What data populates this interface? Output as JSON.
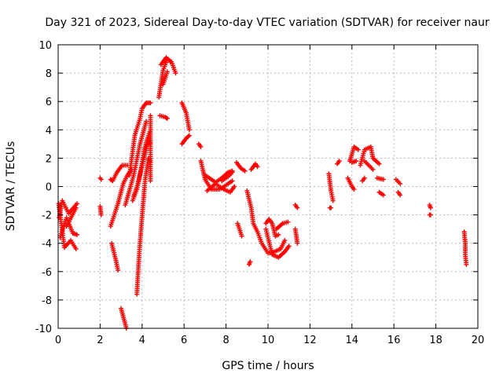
{
  "chart_data": {
    "type": "scatter",
    "title": "Day 321 of 2023, Sidereal Day-to-day VTEC variation (SDTVAR) for receiver naur",
    "xlabel": "GPS time / hours",
    "ylabel": "SDTVAR / TECUs",
    "xlim": [
      0,
      20
    ],
    "ylim": [
      -10,
      10
    ],
    "xticks": [
      0,
      2,
      4,
      6,
      8,
      10,
      12,
      14,
      16,
      18,
      20
    ],
    "yticks": [
      -10,
      -8,
      -6,
      -4,
      -2,
      0,
      2,
      4,
      6,
      8,
      10
    ],
    "grid": true,
    "marker": "+",
    "color": "#ff0000",
    "series": [
      {
        "name": "SDTVAR",
        "segments": [
          [
            [
              0.02,
              -1.2
            ],
            [
              0.3,
              -4.3
            ],
            [
              0.6,
              -3.8
            ],
            [
              0.85,
              -4.4
            ]
          ],
          [
            [
              0.05,
              -2.2
            ],
            [
              0.2,
              -1.0
            ],
            [
              0.5,
              -1.9
            ],
            [
              0.9,
              -1.2
            ]
          ],
          [
            [
              0.1,
              -3.6
            ],
            [
              0.4,
              -2.2
            ],
            [
              0.7,
              -3.3
            ],
            [
              0.9,
              -3.4
            ]
          ],
          [
            [
              0.4,
              -2.8
            ],
            [
              0.85,
              -1.5
            ]
          ],
          [
            [
              2.0,
              0.6
            ],
            [
              2.05,
              0.5
            ]
          ],
          [
            [
              2.0,
              -1.4
            ],
            [
              2.05,
              -2.0
            ]
          ],
          [
            [
              2.5,
              -2.8
            ],
            [
              2.85,
              -1.2
            ],
            [
              3.1,
              0.2
            ],
            [
              3.3,
              0.8
            ],
            [
              3.5,
              1.2
            ]
          ],
          [
            [
              2.5,
              0.5
            ],
            [
              2.6,
              0.4
            ],
            [
              2.8,
              1.0
            ],
            [
              3.05,
              1.5
            ],
            [
              3.3,
              1.5
            ]
          ],
          [
            [
              2.55,
              -4.0
            ],
            [
              2.75,
              -5.2
            ],
            [
              2.85,
              -5.9
            ]
          ],
          [
            [
              3.0,
              -8.6
            ],
            [
              3.25,
              -10.0
            ]
          ],
          [
            [
              3.2,
              -1.3
            ],
            [
              3.6,
              0.8
            ],
            [
              3.9,
              3.0
            ],
            [
              4.2,
              4.6
            ]
          ],
          [
            [
              3.4,
              0.8
            ],
            [
              3.65,
              3.6
            ],
            [
              3.9,
              4.8
            ],
            [
              4.0,
              5.5
            ],
            [
              4.2,
              5.9
            ],
            [
              4.4,
              5.9
            ]
          ],
          [
            [
              3.55,
              -1.0
            ],
            [
              3.75,
              -0.2
            ],
            [
              3.95,
              1.2
            ],
            [
              4.1,
              2.6
            ],
            [
              4.3,
              3.6
            ],
            [
              4.4,
              4.0
            ]
          ],
          [
            [
              3.6,
              -0.7
            ],
            [
              3.8,
              0.2
            ],
            [
              4.0,
              1.5
            ],
            [
              4.3,
              3.2
            ],
            [
              4.4,
              3.0
            ]
          ],
          [
            [
              3.75,
              -7.6
            ],
            [
              3.85,
              -5.0
            ],
            [
              3.95,
              -3.0
            ],
            [
              4.05,
              -1.2
            ],
            [
              4.15,
              0.5
            ],
            [
              4.3,
              2.0
            ],
            [
              4.4,
              1.7
            ]
          ],
          [
            [
              4.4,
              0.4
            ],
            [
              4.4,
              5.0
            ]
          ],
          [
            [
              4.8,
              6.3
            ],
            [
              5.0,
              8.2
            ],
            [
              5.2,
              9.0
            ],
            [
              5.4,
              8.8
            ],
            [
              5.6,
              8.0
            ]
          ],
          [
            [
              4.9,
              8.6
            ],
            [
              5.15,
              9.1
            ],
            [
              5.35,
              8.8
            ]
          ],
          [
            [
              5.0,
              7.2
            ],
            [
              5.2,
              8.1
            ]
          ],
          [
            [
              4.85,
              5.0
            ],
            [
              5.1,
              4.9
            ],
            [
              5.2,
              4.8
            ]
          ],
          [
            [
              5.9,
              5.9
            ],
            [
              6.1,
              5.2
            ],
            [
              6.25,
              4.0
            ]
          ],
          [
            [
              5.9,
              3.0
            ],
            [
              6.1,
              3.4
            ],
            [
              6.25,
              3.6
            ]
          ],
          [
            [
              6.7,
              3.0
            ],
            [
              6.8,
              2.8
            ]
          ],
          [
            [
              6.8,
              1.8
            ],
            [
              7.0,
              0.5
            ],
            [
              7.3,
              -0.2
            ],
            [
              7.7,
              -0.2
            ],
            [
              8.1,
              0.2
            ],
            [
              8.3,
              0.4
            ]
          ],
          [
            [
              7.0,
              0.8
            ],
            [
              7.5,
              0.3
            ],
            [
              7.8,
              0.6
            ],
            [
              8.1,
              1.0
            ],
            [
              8.3,
              1.1
            ]
          ],
          [
            [
              7.1,
              -0.3
            ],
            [
              7.5,
              0.2
            ],
            [
              7.9,
              -0.2
            ],
            [
              8.2,
              -0.4
            ],
            [
              8.4,
              0.0
            ]
          ],
          [
            [
              7.8,
              0.4
            ],
            [
              8.1,
              0.7
            ],
            [
              8.3,
              1.0
            ]
          ],
          [
            [
              8.5,
              1.7
            ],
            [
              8.7,
              1.3
            ],
            [
              8.9,
              1.1
            ]
          ],
          [
            [
              8.55,
              -2.6
            ],
            [
              8.75,
              -3.5
            ]
          ],
          [
            [
              9.0,
              -0.3
            ],
            [
              9.2,
              -1.5
            ],
            [
              9.3,
              -2.6
            ],
            [
              9.5,
              -3.2
            ],
            [
              9.7,
              -4.0
            ],
            [
              10.0,
              -4.7
            ],
            [
              10.3,
              -4.6
            ],
            [
              10.6,
              -4.4
            ],
            [
              10.8,
              -3.8
            ]
          ],
          [
            [
              9.1,
              -5.5
            ],
            [
              9.15,
              -5.3
            ]
          ],
          [
            [
              9.2,
              1.2
            ],
            [
              9.4,
              1.6
            ],
            [
              9.5,
              1.4
            ]
          ],
          [
            [
              9.9,
              -3.0
            ],
            [
              10.2,
              -4.8
            ],
            [
              10.5,
              -5.0
            ],
            [
              10.8,
              -4.6
            ],
            [
              11.0,
              -4.2
            ]
          ],
          [
            [
              9.9,
              -2.6
            ],
            [
              10.05,
              -2.3
            ],
            [
              10.2,
              -2.6
            ],
            [
              10.35,
              -3.5
            ],
            [
              10.5,
              -3.4
            ]
          ],
          [
            [
              10.4,
              -3.0
            ],
            [
              10.7,
              -2.6
            ],
            [
              10.95,
              -2.5
            ]
          ],
          [
            [
              11.3,
              -1.3
            ],
            [
              11.4,
              -1.5
            ]
          ],
          [
            [
              11.3,
              -3.0
            ],
            [
              11.4,
              -4.0
            ]
          ],
          [
            [
              12.9,
              0.9
            ],
            [
              13.0,
              -0.3
            ],
            [
              13.1,
              -1.0
            ]
          ],
          [
            [
              12.95,
              -1.5
            ],
            [
              13.0,
              -1.5
            ]
          ],
          [
            [
              13.3,
              1.6
            ],
            [
              13.4,
              1.8
            ]
          ],
          [
            [
              13.8,
              0.6
            ],
            [
              14.0,
              0.0
            ],
            [
              14.1,
              -0.2
            ]
          ],
          [
            [
              13.9,
              1.8
            ],
            [
              14.1,
              2.8
            ],
            [
              14.3,
              2.6
            ]
          ],
          [
            [
              14.0,
              1.7
            ],
            [
              14.2,
              1.8
            ]
          ],
          [
            [
              14.4,
              1.5
            ],
            [
              14.6,
              2.6
            ],
            [
              14.9,
              2.8
            ],
            [
              15.0,
              2.0
            ],
            [
              15.3,
              1.6
            ]
          ],
          [
            [
              14.5,
              0.4
            ],
            [
              14.6,
              0.6
            ]
          ],
          [
            [
              14.6,
              1.8
            ],
            [
              14.8,
              1.5
            ],
            [
              15.0,
              1.2
            ]
          ],
          [
            [
              15.2,
              0.6
            ],
            [
              15.5,
              0.5
            ]
          ],
          [
            [
              15.3,
              -0.4
            ],
            [
              15.5,
              -0.6
            ]
          ],
          [
            [
              16.1,
              0.5
            ],
            [
              16.3,
              0.2
            ]
          ],
          [
            [
              16.2,
              -0.4
            ],
            [
              16.3,
              -0.6
            ]
          ],
          [
            [
              17.7,
              -1.3
            ],
            [
              17.75,
              -1.5
            ]
          ],
          [
            [
              17.7,
              -2.0
            ],
            [
              17.75,
              -2.0
            ]
          ],
          [
            [
              19.35,
              -3.2
            ],
            [
              19.4,
              -4.0
            ],
            [
              19.4,
              -4.8
            ],
            [
              19.45,
              -5.5
            ]
          ]
        ]
      }
    ]
  }
}
